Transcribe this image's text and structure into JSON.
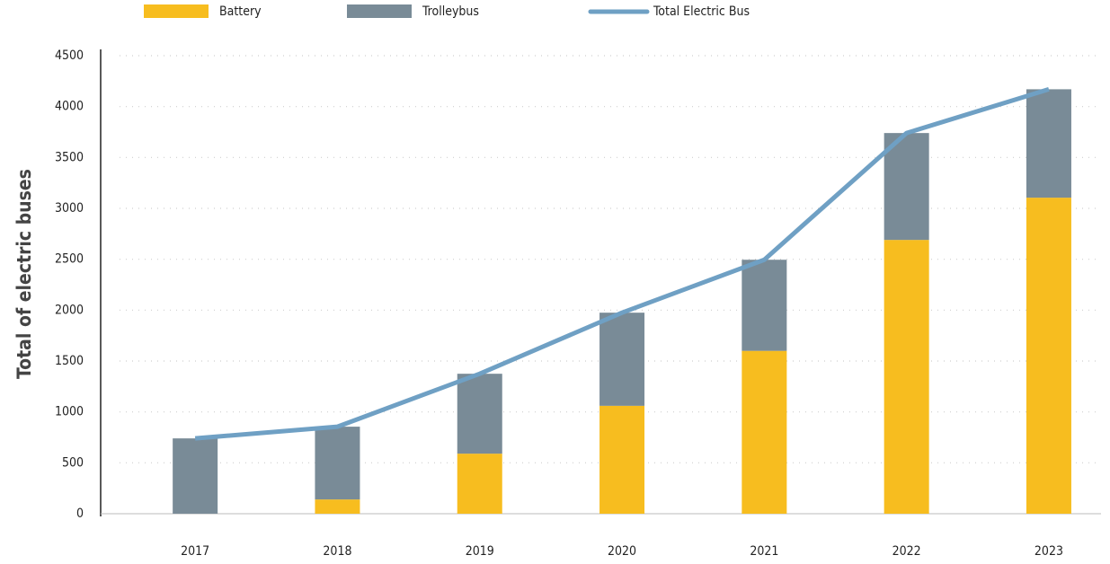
{
  "chart_data": {
    "type": "bar",
    "stacked": true,
    "ylabel": "Total of electric buses",
    "categories": [
      "2017",
      "2018",
      "2019",
      "2020",
      "2021",
      "2022",
      "2023"
    ],
    "series": [
      {
        "name": "Battery",
        "color": "#f7bd1f",
        "values": [
          0,
          140,
          590,
          1060,
          1600,
          2690,
          3105
        ]
      },
      {
        "name": "Trolleybus",
        "color": "#798b97",
        "values": [
          740,
          715,
          785,
          915,
          895,
          1050,
          1065
        ]
      },
      {
        "name": "Total Electric Bus",
        "type": "line",
        "color": "#6fa0c4",
        "values": [
          740,
          855,
          1375,
          1975,
          2495,
          3740,
          4170
        ]
      }
    ],
    "ylim": [
      0,
      4500
    ],
    "yticks": [
      0,
      500,
      1000,
      1500,
      2000,
      2500,
      3000,
      3500,
      4000,
      4500
    ],
    "grid": true,
    "legend": "top"
  }
}
